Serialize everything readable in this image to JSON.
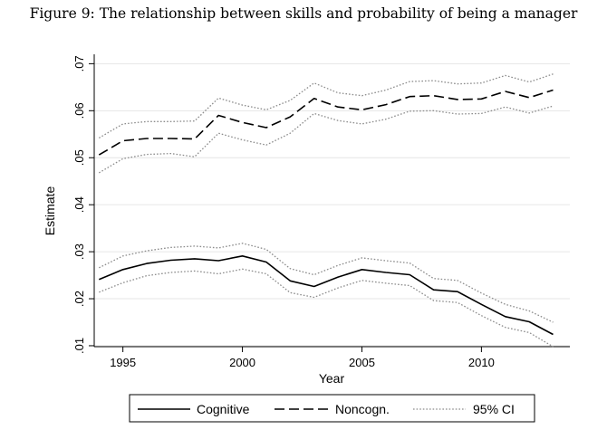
{
  "figure": {
    "title": "Figure 9: The relationship between skills and probability of being a manager"
  },
  "chart_data": {
    "type": "line",
    "title": "Figure 9: The relationship between skills and probability of being a manager",
    "xlabel": "Year",
    "ylabel": "Estimate",
    "xlim": [
      1993.8,
      2013.7
    ],
    "ylim": [
      0.0098,
      0.072
    ],
    "xticks": [
      1995,
      2000,
      2005,
      2010
    ],
    "xtick_labels": [
      "1995",
      "2000",
      "2005",
      "2010"
    ],
    "yticks": [
      0.01,
      0.02,
      0.03,
      0.04,
      0.05,
      0.06,
      0.07
    ],
    "ytick_labels": [
      ".01",
      ".02",
      ".03",
      ".04",
      ".05",
      ".06",
      ".07"
    ],
    "grid": "horizontal",
    "legend_position": "bottom",
    "x": [
      1994,
      1995,
      1996,
      1997,
      1998,
      1999,
      2000,
      2001,
      2002,
      2003,
      2004,
      2005,
      2006,
      2007,
      2008,
      2009,
      2010,
      2011,
      2012,
      2013
    ],
    "series": [
      {
        "name": "Cognitive",
        "style": "solid",
        "values": [
          0.0241,
          0.0262,
          0.0275,
          0.0282,
          0.0285,
          0.0281,
          0.0291,
          0.0278,
          0.0238,
          0.0226,
          0.0246,
          0.0262,
          0.0256,
          0.0251,
          0.0219,
          0.0215,
          0.0188,
          0.0162,
          0.0151,
          0.0124
        ]
      },
      {
        "style": "dotted",
        "values": [
          0.0266,
          0.0291,
          0.0302,
          0.0309,
          0.0312,
          0.0308,
          0.0318,
          0.0305,
          0.0264,
          0.0251,
          0.0271,
          0.0287,
          0.0281,
          0.0276,
          0.0243,
          0.0239,
          0.0212,
          0.0188,
          0.0174,
          0.015
        ]
      },
      {
        "style": "dotted",
        "values": [
          0.0214,
          0.0234,
          0.0249,
          0.0256,
          0.0259,
          0.0253,
          0.0263,
          0.0253,
          0.0213,
          0.0203,
          0.0223,
          0.0239,
          0.0233,
          0.0228,
          0.0196,
          0.0192,
          0.0164,
          0.0139,
          0.0128,
          0.0098
        ]
      },
      {
        "name": "Noncogn.",
        "style": "dashed",
        "values": [
          0.0506,
          0.0536,
          0.0541,
          0.0541,
          0.054,
          0.059,
          0.0575,
          0.0564,
          0.0587,
          0.0626,
          0.0608,
          0.0602,
          0.0613,
          0.063,
          0.0632,
          0.0624,
          0.0625,
          0.0641,
          0.0628,
          0.0644
        ]
      },
      {
        "style": "dotted",
        "values": [
          0.0542,
          0.0572,
          0.0577,
          0.0577,
          0.0578,
          0.0627,
          0.0612,
          0.0602,
          0.0622,
          0.0659,
          0.0638,
          0.0632,
          0.0644,
          0.0662,
          0.0664,
          0.0657,
          0.0659,
          0.0675,
          0.0661,
          0.0678
        ]
      },
      {
        "style": "dotted",
        "values": [
          0.0468,
          0.0498,
          0.0507,
          0.0509,
          0.0502,
          0.0552,
          0.0538,
          0.0527,
          0.0552,
          0.0594,
          0.0579,
          0.0572,
          0.0582,
          0.0599,
          0.06,
          0.0593,
          0.0594,
          0.0608,
          0.0595,
          0.061
        ]
      }
    ],
    "legend": [
      {
        "label": "Cognitive",
        "style": "solid"
      },
      {
        "label": "Noncogn.",
        "style": "dashed"
      },
      {
        "label": "95% CI",
        "style": "dotted"
      }
    ],
    "colors": {
      "line": "#000000",
      "ci": "#8c8c8c",
      "grid": "#e6e6e6"
    }
  }
}
